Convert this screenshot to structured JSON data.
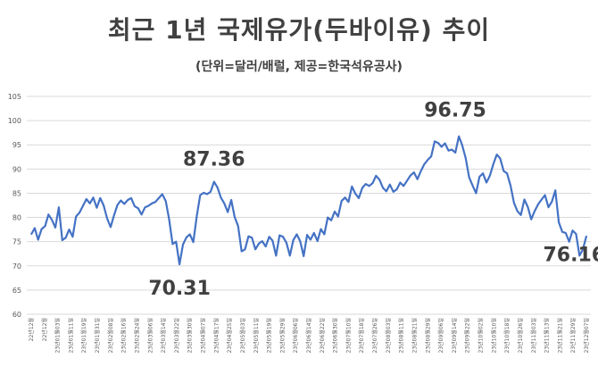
{
  "chart_data": {
    "type": "line",
    "title": "최근 1년 국제유가(두바이유) 추이",
    "subtitle": "(단위=달러/배럴, 제공=한국석유공사)",
    "ylim": [
      60,
      105
    ],
    "yticks": [
      60,
      65,
      70,
      75,
      80,
      85,
      90,
      95,
      100,
      105
    ],
    "grid": true,
    "line_color": "#4472C4",
    "x_labels": [
      "22년12월",
      "22년12월",
      "23년01월03일",
      "23년01월11일",
      "23년01월19일",
      "23년01월31일",
      "23년02월08일",
      "23년02월16일",
      "23년02월24일",
      "23년03월06일",
      "23년03월14일",
      "23년03월22일",
      "23년03월30일",
      "23년04월07일",
      "23년04월17일",
      "23년04월25일",
      "23년05월03일",
      "23년05월11일",
      "23년05월19일",
      "23년05월29일",
      "23년06월06일",
      "23년06월14일",
      "23년06월22일",
      "23년06월30일",
      "23년07월10일",
      "23년07월18일",
      "23년07월26일",
      "23년08월03일",
      "23년08월11일",
      "23년08월21일",
      "23년08월29일",
      "23년09월06일",
      "23년09월14일",
      "23년09월22일",
      "23년10월02일",
      "23년10월10일",
      "23년10월18일",
      "23년10월26일",
      "23년11월03일",
      "23년11월13일",
      "23년11월21일",
      "23년11월29일",
      "23년12월07일"
    ],
    "series": [
      {
        "values": [
          76.5,
          77.8,
          75.4,
          77.6,
          78.2,
          80.6,
          79.5,
          77.9,
          82.1,
          75.3,
          75.8,
          77.5,
          76.0,
          80.2,
          81.0,
          82.4,
          83.8,
          82.9,
          84.1,
          82.0,
          84.0,
          82.5,
          79.8,
          78.0,
          80.4,
          82.6,
          83.5,
          82.8,
          83.6,
          84.0,
          82.3,
          81.9,
          80.6,
          82.1,
          82.4,
          82.9,
          83.2,
          84.0,
          84.8,
          83.4,
          79.6,
          74.5,
          75.0,
          70.31,
          74.4,
          75.9,
          76.5,
          74.9,
          80.2,
          84.6,
          85.1,
          84.8,
          85.3,
          87.36,
          86.2,
          84.1,
          82.9,
          81.1,
          83.6,
          80.1,
          78.2,
          73.0,
          73.4,
          76.1,
          75.8,
          73.4,
          74.6,
          75.1,
          74.0,
          76.0,
          75.2,
          72.1,
          76.3,
          76.0,
          74.8,
          72.1,
          75.3,
          76.5,
          75.1,
          72.0,
          76.4,
          75.4,
          76.8,
          75.1,
          77.6,
          76.5,
          80.0,
          79.4,
          81.2,
          80.2,
          83.4,
          84.1,
          83.2,
          86.4,
          84.9,
          84.0,
          86.1,
          86.9,
          86.5,
          87.1,
          88.6,
          87.8,
          86.1,
          85.4,
          86.8,
          85.3,
          85.8,
          87.2,
          86.5,
          87.6,
          88.7,
          89.3,
          87.9,
          89.6,
          91.0,
          91.9,
          92.6,
          95.7,
          95.4,
          94.6,
          95.3,
          93.8,
          94.0,
          93.4,
          96.75,
          94.9,
          92.2,
          88.3,
          86.6,
          85.0,
          88.4,
          89.1,
          87.2,
          88.6,
          91.0,
          93.0,
          92.2,
          89.6,
          89.1,
          86.6,
          83.0,
          81.3,
          80.5,
          83.7,
          82.2,
          79.6,
          81.3,
          82.7,
          83.7,
          84.6,
          82.1,
          83.3,
          85.6,
          79.0,
          77.0,
          76.8,
          75.0,
          77.3,
          76.6,
          72.1,
          73.4,
          76.16
        ]
      }
    ],
    "annotations": [
      {
        "text": "87.36",
        "x_index": 53,
        "y": 87.36
      },
      {
        "text": "70.31",
        "x_index": 43,
        "y": 70.31
      },
      {
        "text": "96.75",
        "x_index": 124,
        "y": 96.75
      },
      {
        "text": "76.16",
        "x_index": 159,
        "y": 76.16
      }
    ]
  }
}
